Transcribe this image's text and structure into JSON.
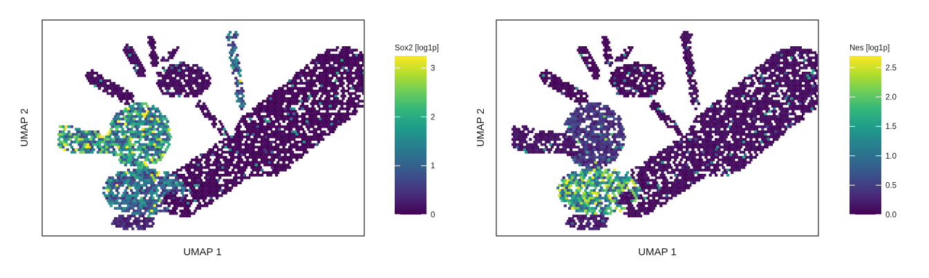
{
  "chart_data": [
    {
      "type": "heatmap",
      "subtype": "hexbin-umap",
      "title": "",
      "xlabel": "UMAP 1",
      "ylabel": "UMAP 2",
      "legend": {
        "title": "Sox2 [log1p]",
        "placement": "right",
        "ticks": [
          "0",
          "1",
          "2",
          "3"
        ],
        "range": [
          0,
          3.25
        ]
      },
      "colormap": "viridis",
      "grid": false,
      "expression_regions": [
        {
          "region": "left wing",
          "level": 2.2
        },
        {
          "region": "left center",
          "level": 2.0
        },
        {
          "region": "lower left lobe",
          "level": 1.8
        },
        {
          "region": "lower center",
          "level": 1.4
        },
        {
          "region": "top spike tip",
          "level": 1.3
        },
        {
          "region": "bottom-left lobe",
          "level": 0.4
        },
        {
          "region": "top branches",
          "level": 0.1
        },
        {
          "region": "upper right mass",
          "level": 0.05
        }
      ]
    },
    {
      "type": "heatmap",
      "subtype": "hexbin-umap",
      "title": "",
      "xlabel": "UMAP 1",
      "ylabel": "UMAP 2",
      "legend": {
        "title": "Nes [log1p]",
        "placement": "right",
        "ticks": [
          "0.0",
          "0.5",
          "1.0",
          "1.5",
          "2.0",
          "2.5"
        ],
        "range": [
          0,
          2.7
        ]
      },
      "colormap": "viridis",
      "grid": false,
      "expression_regions": [
        {
          "region": "lower center",
          "level": 2.0
        },
        {
          "region": "left center",
          "level": 0.5
        },
        {
          "region": "lower left lobe",
          "level": 0.5
        },
        {
          "region": "left wing",
          "level": 0.15
        },
        {
          "region": "bottom-left lobe",
          "level": 0.2
        },
        {
          "region": "top branches",
          "level": 0.05
        },
        {
          "region": "upper right mass",
          "level": 0.1
        }
      ]
    }
  ],
  "colors": {
    "viridis": [
      "#440154",
      "#482878",
      "#3e4989",
      "#31688e",
      "#26828e",
      "#1f9e89",
      "#35b779",
      "#6ece58",
      "#b5de2b",
      "#fde725"
    ],
    "frame": "#1a1a1a",
    "background": "#ffffff"
  }
}
